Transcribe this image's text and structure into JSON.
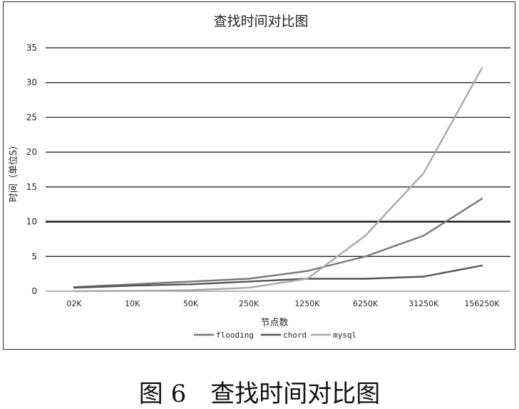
{
  "caption": "图 6　查找时间对比图",
  "chart_data": {
    "type": "line",
    "title": "查找时间对比图",
    "xlabel": "节点数",
    "ylabel": "时间（单位S）",
    "categories": [
      "02K",
      "10K",
      "50K",
      "250K",
      "1250K",
      "6250K",
      "31250K",
      "156250K"
    ],
    "ylim": [
      0,
      35
    ],
    "yticks": [
      0,
      5,
      10,
      15,
      20,
      25,
      30,
      35
    ],
    "grid": true,
    "legend_position": "bottom",
    "series": [
      {
        "name": "flooding",
        "color": "#777777",
        "values": [
          0.6,
          1.0,
          1.4,
          1.8,
          2.9,
          5.0,
          8.0,
          13.3
        ]
      },
      {
        "name": "chord",
        "color": "#555555",
        "values": [
          0.5,
          0.8,
          1.0,
          1.4,
          1.8,
          1.8,
          2.1,
          3.7
        ]
      },
      {
        "name": "mysql",
        "color": "#a8a8a8",
        "values": [
          0.0,
          0.05,
          0.15,
          0.5,
          1.8,
          8.0,
          17.0,
          32.1
        ]
      }
    ]
  }
}
